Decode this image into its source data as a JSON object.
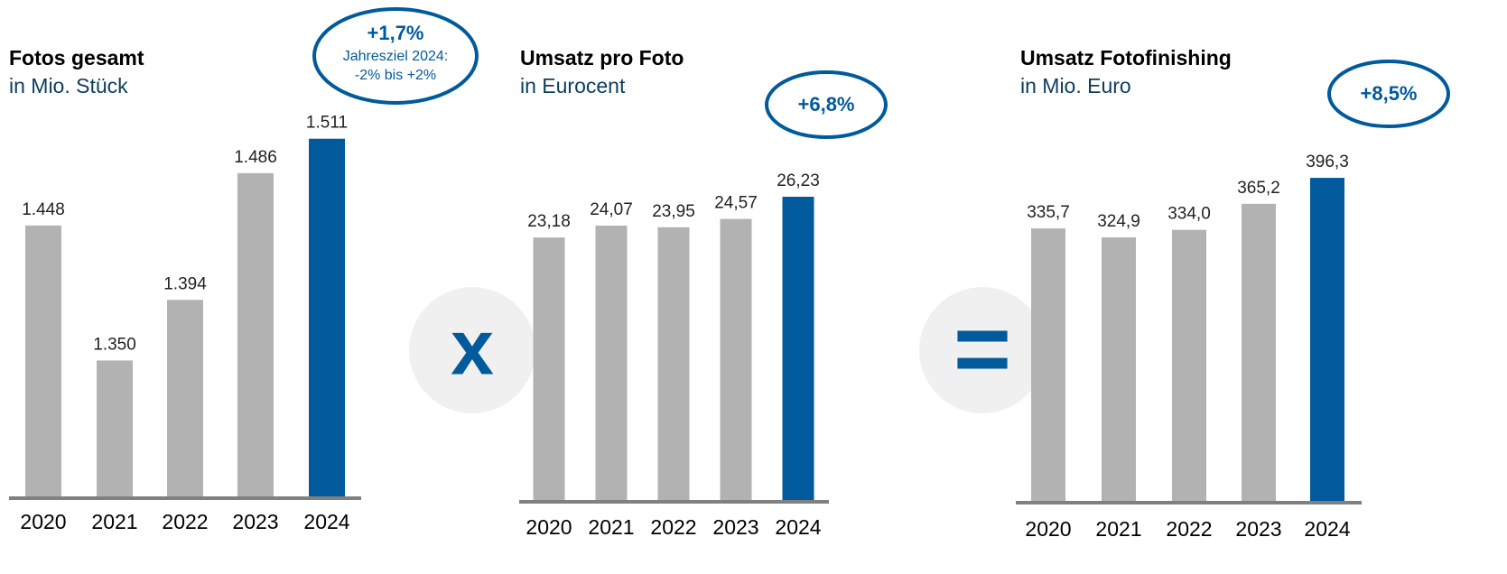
{
  "chart_data": [
    {
      "type": "bar",
      "title": "Fotos gesamt",
      "subtitle": "in Mio. Stück",
      "categories": [
        "2020",
        "2021",
        "2022",
        "2023",
        "2024"
      ],
      "values": [
        1448,
        1350,
        1394,
        1486,
        1511
      ],
      "value_labels": [
        "1.448",
        "1.350",
        "1.394",
        "1.486",
        "1.511"
      ],
      "colors": [
        "#b2b2b2",
        "#b2b2b2",
        "#b2b2b2",
        "#b2b2b2",
        "#005a9b"
      ],
      "ylim": [
        1250,
        1520
      ],
      "annotation": {
        "text": "+1,7%",
        "note": [
          "Jahresziel 2024:",
          "-2% bis +2%"
        ]
      }
    },
    {
      "type": "bar",
      "title": "Umsatz pro Foto",
      "subtitle": "in Eurocent",
      "categories": [
        "2020",
        "2021",
        "2022",
        "2023",
        "2024"
      ],
      "values": [
        23.18,
        24.07,
        23.95,
        24.57,
        26.23
      ],
      "value_labels": [
        "23,18",
        "24,07",
        "23,95",
        "24,57",
        "26,23"
      ],
      "colors": [
        "#b2b2b2",
        "#b2b2b2",
        "#b2b2b2",
        "#b2b2b2",
        "#005a9b"
      ],
      "ylim": [
        3.4,
        31.5
      ],
      "annotation": {
        "text": "+6,8%"
      }
    },
    {
      "type": "bar",
      "title": "Umsatz Fotofinishing",
      "subtitle": "in Mio. Euro",
      "categories": [
        "2020",
        "2021",
        "2022",
        "2023",
        "2024"
      ],
      "values": [
        335.7,
        324.9,
        334.0,
        365.2,
        396.3
      ],
      "value_labels": [
        "335,7",
        "324,9",
        "334,0",
        "365,2",
        "396,3"
      ],
      "colors": [
        "#b2b2b2",
        "#b2b2b2",
        "#b2b2b2",
        "#b2b2b2",
        "#005a9b"
      ],
      "ylim": [
        7,
        458
      ],
      "annotation": {
        "text": "+8,5%"
      }
    }
  ],
  "operators": [
    "x",
    "="
  ]
}
